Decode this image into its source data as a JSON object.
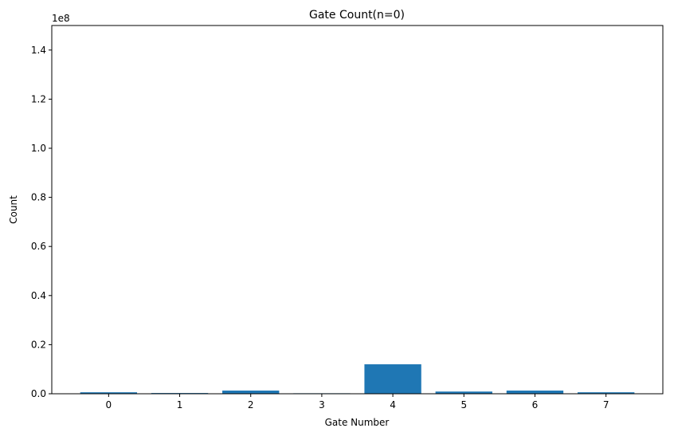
{
  "chart_data": {
    "type": "bar",
    "title": "Gate Count(n=0)",
    "xlabel": "Gate Number",
    "ylabel": "Count",
    "y_offset_label": "1e8",
    "categories": [
      "0",
      "1",
      "2",
      "3",
      "4",
      "5",
      "6",
      "7"
    ],
    "values": [
      600000,
      300000,
      1300000,
      200000,
      12000000,
      900000,
      1300000,
      600000
    ],
    "ylim": [
      0,
      150000000
    ],
    "yticks": [
      0,
      20000000,
      40000000,
      60000000,
      80000000,
      100000000,
      120000000,
      140000000
    ],
    "ytick_labels": [
      "0.0",
      "0.2",
      "0.4",
      "0.6",
      "0.8",
      "1.0",
      "1.2",
      "1.4"
    ],
    "grid": false,
    "bar_color": "#1f77b4"
  }
}
